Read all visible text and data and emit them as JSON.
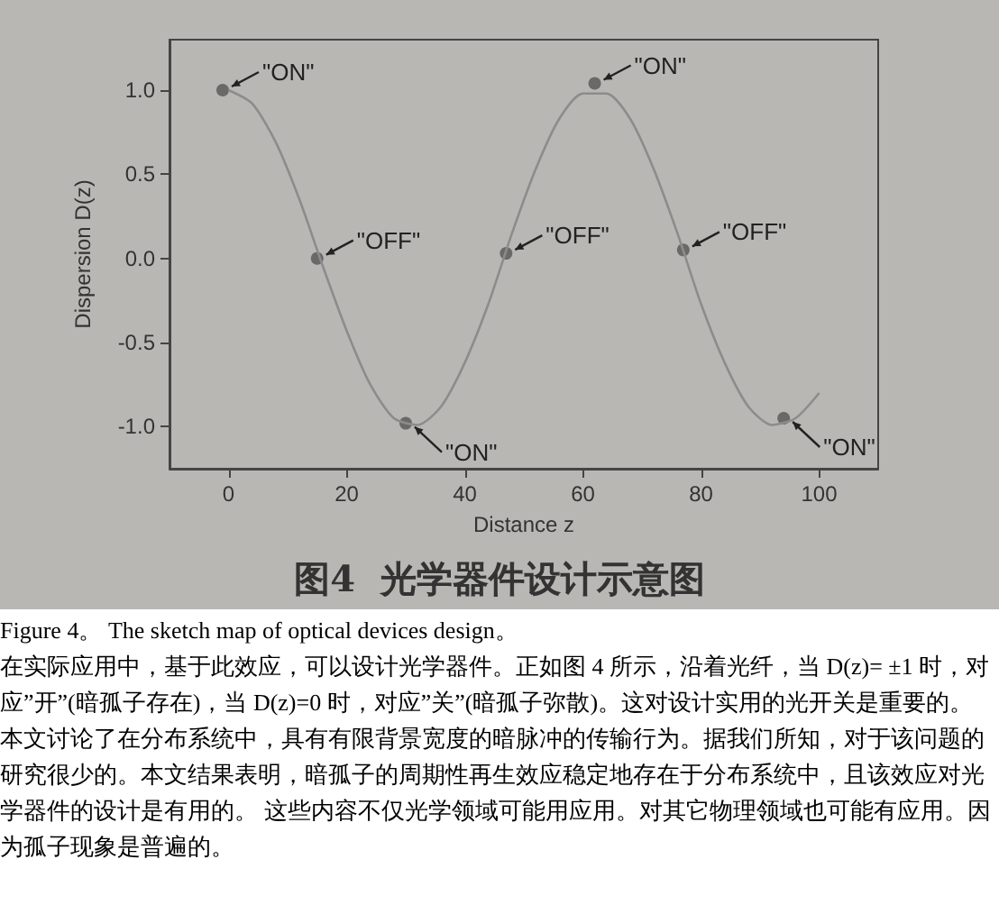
{
  "chart_data": {
    "type": "line",
    "title": "图4  光学器件设计示意图",
    "xlabel": "Distance z",
    "ylabel": "Dispersion D(z)",
    "xlim": [
      -10,
      110
    ],
    "xticks": [
      0,
      20,
      40,
      60,
      80,
      100
    ],
    "ylim": [
      -1.25,
      1.3
    ],
    "yticks": [
      {
        "value": -1,
        "label": "-1.0"
      },
      -0.5,
      {
        "value": 0,
        "label": "0.0"
      },
      0.5,
      {
        "value": 1,
        "label": "1.0"
      }
    ],
    "grid": false,
    "series": [
      {
        "type": "line",
        "color": "#8c8c8c",
        "marker": "none",
        "x": [
          0,
          4,
          8,
          12,
          16,
          20,
          24,
          28,
          32,
          36,
          40,
          44,
          48,
          52,
          56,
          60,
          64,
          68,
          72,
          76,
          80,
          84,
          88,
          92,
          96,
          100
        ],
        "values": [
          1.0,
          0.92,
          0.69,
          0.35,
          -0.05,
          -0.43,
          -0.75,
          -0.95,
          -0.99,
          -0.88,
          -0.62,
          -0.27,
          0.15,
          0.53,
          0.83,
          0.98,
          0.98,
          0.83,
          0.53,
          0.15,
          -0.27,
          -0.62,
          -0.88,
          -0.99,
          -0.95,
          -0.8
        ]
      },
      {
        "type": "scatter",
        "color": "#555555",
        "marker": "circle",
        "x": [
          -1,
          15,
          30,
          47,
          62,
          77,
          94
        ],
        "values": [
          1.0,
          0.0,
          -0.98,
          0.03,
          1.04,
          0.05,
          -0.95
        ]
      }
    ],
    "annotations": [
      {
        "text": "\"ON\"",
        "x": -1,
        "y": 1.0
      },
      {
        "text": "\"OFF\"",
        "x": 15,
        "y": 0.0
      },
      {
        "text": "\"ON\"",
        "x": 30,
        "y": -0.98
      },
      {
        "text": "\"OFF\"",
        "x": 47,
        "y": 0.03
      },
      {
        "text": "\"ON\"",
        "x": 62,
        "y": 1.04
      },
      {
        "text": "\"OFF\"",
        "x": 77,
        "y": 0.05
      },
      {
        "text": "\"ON\"",
        "x": 94,
        "y": -0.95
      },
      "Figure 4。 The sketch map of optical devices design。",
      "在实际应用中，基于此效应，可以设计光学器件。正如图 4 所示，沿着光纤，当 D(z)= ±1 时，对应”开”(暗孤子存在)，当 D(z)=0 时，对应”关”(暗孤子弥散)。这对设计实用的光开关是重要的。",
      "本文讨论了在分布系统中，具有有限背景宽度的暗脉冲的传输行为。据我们所知，对于该问题的研究很少的。本文结果表明，暗孤子的周期性再生效应稳定地存在于分布系统中，且该效应对光学器件的设计是有用的。 这些内容不仅光学领域可能用应用。对其它物理领域也可能有应用。因为孤子现象是普遍的。"
    ]
  }
}
